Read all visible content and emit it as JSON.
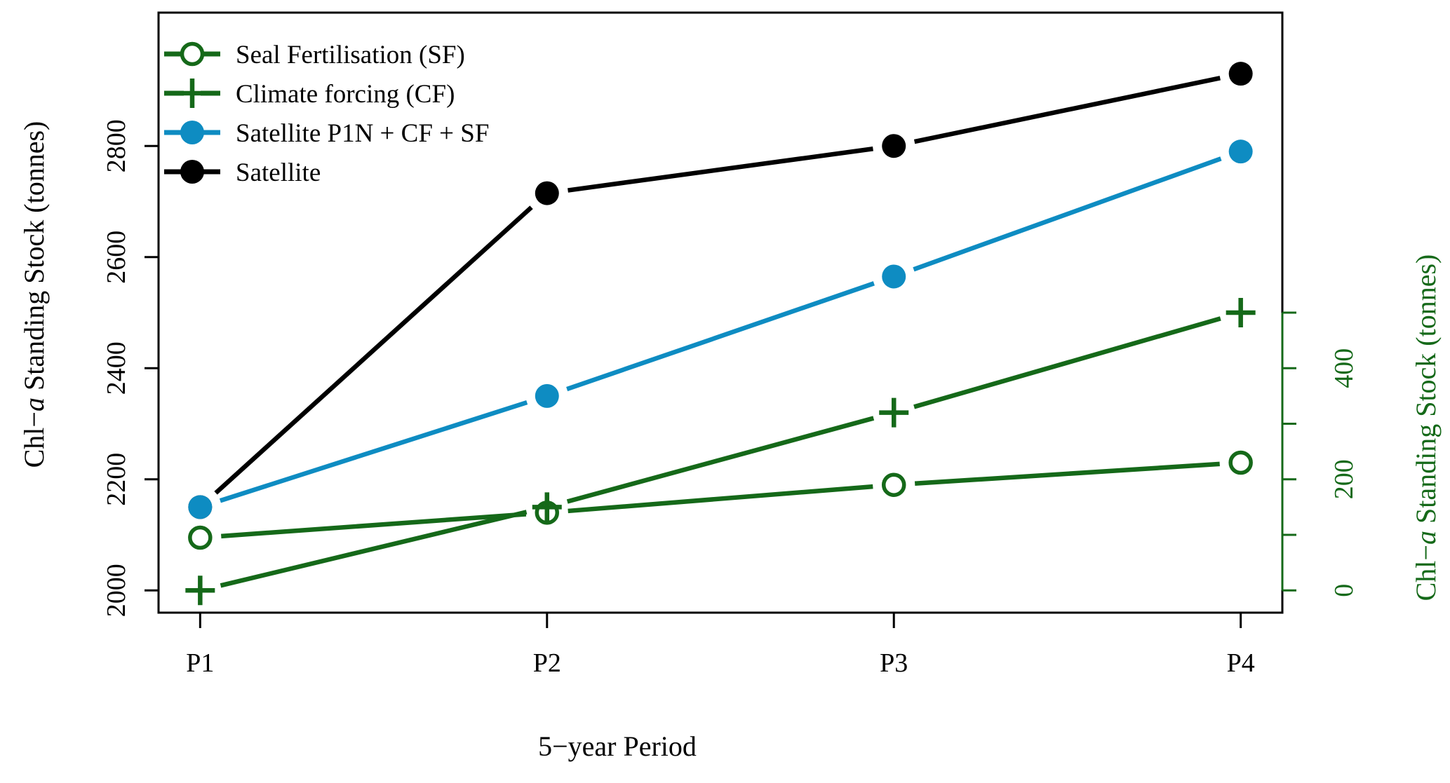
{
  "figure": {
    "background": "#ffffff"
  },
  "colors": {
    "black": "#000000",
    "blue": "#0E8CC2",
    "green": "#156919"
  },
  "chart_data": {
    "type": "line",
    "title": "",
    "xlabel": "5−year Period",
    "x_categories": [
      "P1",
      "P2",
      "P3",
      "P4"
    ],
    "x_domain": [
      0.88,
      4.12
    ],
    "grid": "off",
    "left_axis": {
      "label": "Chl−a Standing Stock (tonnes)",
      "label_parts": {
        "prefix": "Chl−",
        "italic": "a",
        "suffix": " Standing Stock (tonnes)"
      },
      "color": "#000000",
      "range": [
        1960,
        3040
      ],
      "ticks": [
        {
          "value": 2000,
          "label": "2000"
        },
        {
          "value": 2200,
          "label": "2200"
        },
        {
          "value": 2400,
          "label": "2400"
        },
        {
          "value": 2600,
          "label": "2600"
        },
        {
          "value": 2800,
          "label": "2800"
        }
      ]
    },
    "right_axis": {
      "label": "Chl−a Standing Stock (tonnes)",
      "label_parts": {
        "prefix": "Chl−",
        "italic": "a",
        "suffix": " Standing Stock (tonnes)"
      },
      "color": "#156919",
      "range": [
        -40,
        1040
      ],
      "axis_line_span": [
        0,
        500
      ],
      "ticks": [
        {
          "value": 0,
          "label": "0"
        },
        {
          "value": 100,
          "label": ""
        },
        {
          "value": 200,
          "label": "200"
        },
        {
          "value": 300,
          "label": ""
        },
        {
          "value": 400,
          "label": "400"
        },
        {
          "value": 500,
          "label": ""
        }
      ]
    },
    "legend": {
      "position": "top-left",
      "entries": [
        {
          "label": "Seal Fertilisation (SF)",
          "marker": "open-circle",
          "color": "#156919"
        },
        {
          "label": "Climate forcing (CF)",
          "marker": "plus",
          "color": "#156919"
        },
        {
          "label": "Satellite P1N + CF + SF",
          "marker": "filled-circle",
          "color": "#0E8CC2"
        },
        {
          "label": "Satellite",
          "marker": "filled-circle",
          "color": "#000000"
        }
      ]
    },
    "series": [
      {
        "name": "Satellite",
        "axis": "left",
        "marker": "filled-circle",
        "color": "#000000",
        "values": [
          2150,
          2715,
          2800,
          2930
        ]
      },
      {
        "name": "Satellite P1N + CF + SF",
        "axis": "left",
        "marker": "filled-circle",
        "color": "#0E8CC2",
        "values": [
          2150,
          2350,
          2565,
          2790
        ]
      },
      {
        "name": "Climate forcing (CF)",
        "axis": "right",
        "marker": "plus",
        "color": "#156919",
        "values": [
          0,
          150,
          320,
          500
        ]
      },
      {
        "name": "Seal Fertilisation (SF)",
        "axis": "right",
        "marker": "open-circle",
        "color": "#156919",
        "values": [
          95,
          140,
          190,
          230
        ]
      }
    ]
  }
}
